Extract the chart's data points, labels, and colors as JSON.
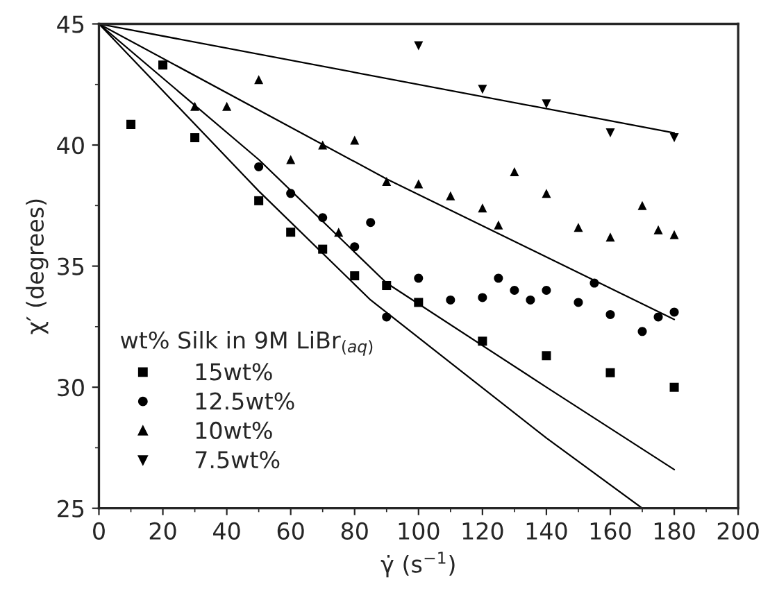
{
  "chart_data": {
    "type": "scatter",
    "xlabel": "γ̇ (s$^{−1}$)",
    "ylabel": "χ′ (degrees)",
    "legend_title": "wt% Silk in 9M LiBr$_{(aq)}$",
    "xlim": [
      0,
      200
    ],
    "ylim": [
      25,
      45
    ],
    "xticks": [
      0,
      20,
      40,
      60,
      80,
      100,
      120,
      140,
      160,
      180,
      200
    ],
    "yticks": [
      25,
      30,
      35,
      40,
      45
    ],
    "grid": false,
    "legend": "bottom left",
    "series": [
      {
        "name": "15wt%",
        "marker": "square",
        "color": "#000000",
        "x": [
          10,
          20,
          30,
          50,
          60,
          70,
          80,
          90,
          100,
          120,
          140,
          160,
          180
        ],
        "values": [
          40.85,
          43.3,
          40.3,
          37.7,
          36.4,
          35.7,
          34.6,
          34.2,
          33.5,
          31.9,
          31.3,
          30.6,
          30.0
        ]
      },
      {
        "name": "12.5wt%",
        "marker": "circle",
        "color": "#000000",
        "x": [
          50,
          60,
          70,
          80,
          85,
          90,
          100,
          110,
          120,
          125,
          130,
          135,
          140,
          150,
          155,
          160,
          170,
          175,
          180
        ],
        "values": [
          39.1,
          38.0,
          37.0,
          35.8,
          36.8,
          32.9,
          34.5,
          33.6,
          33.7,
          34.5,
          34.0,
          33.6,
          34.0,
          33.5,
          34.3,
          33.0,
          32.3,
          32.9,
          33.1
        ]
      },
      {
        "name": "10wt%",
        "marker": "triangle",
        "color": "#000000",
        "x": [
          30,
          40,
          50,
          60,
          70,
          75,
          80,
          90,
          100,
          110,
          120,
          125,
          130,
          140,
          150,
          160,
          170,
          175,
          180
        ],
        "values": [
          41.6,
          41.6,
          42.7,
          39.4,
          40.0,
          36.4,
          40.2,
          38.5,
          38.4,
          37.9,
          37.4,
          36.7,
          38.9,
          38.0,
          36.6,
          36.2,
          37.5,
          36.5,
          36.3
        ]
      },
      {
        "name": "7.5wt%",
        "marker": "triangle_down",
        "color": "#000000",
        "x": [
          100,
          120,
          140,
          160,
          180
        ],
        "values": [
          44.1,
          42.3,
          41.7,
          40.5,
          40.3
        ]
      },
      {
        "type": "line",
        "color": "#000000",
        "x": [
          0,
          50,
          85,
          140,
          170
        ],
        "values": [
          45,
          38.1,
          33.6,
          27.9,
          25.0
        ]
      },
      {
        "type": "line",
        "color": "#000000",
        "x": [
          0,
          50,
          90,
          140,
          180
        ],
        "values": [
          45,
          39.4,
          34.3,
          30.0,
          26.6
        ]
      },
      {
        "type": "line",
        "color": "#000000",
        "x": [
          0,
          90,
          180
        ],
        "values": [
          45,
          38.6,
          32.8
        ]
      },
      {
        "type": "line",
        "color": "#000000",
        "x": [
          0,
          180
        ],
        "values": [
          45,
          40.5
        ]
      }
    ]
  }
}
